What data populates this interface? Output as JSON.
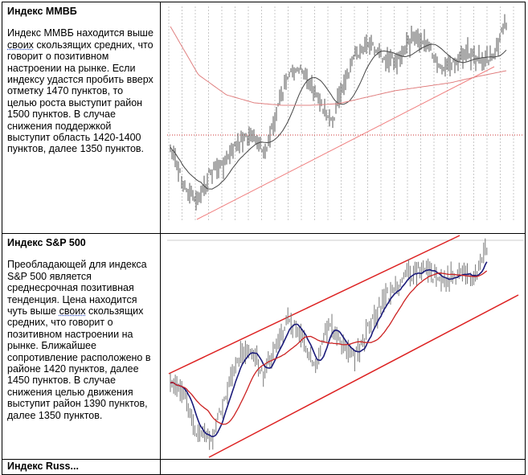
{
  "rows": [
    {
      "title": "Индекс ММВБ",
      "body_parts": [
        "Индекс ММВБ находится выше ",
        "своих",
        " скользящих средних, что говорит о позитивном настроении на рынке. Если индексу удастся пробить вверх отметку 1470 пунктов, то целью роста выступит район 1500 пунктов. В случае снижения поддержкой выступит область 1420-1400  пунктов, далее 1350 пунктов."
      ],
      "chart": {
        "price_color": "#555555",
        "ma_fast_color": "#444444",
        "ma_slow_color": "#e08080",
        "trend_color": "#f08080",
        "level_color": "#cc3333"
      }
    },
    {
      "title": "Индекс S&P 500",
      "body_parts": [
        "Преобладающей для индекса S&P 500 является среднесрочная позитивная тенденция. Цена находится чуть выше ",
        "своих",
        " скользящих средних, что говорит о позитивном настроении на рынке. Ближайшее сопротивление расположено в районе 1420 пунктов, далее 1450 пунктов. В случае снижения целью движения выступит район 1390 пунктов, далее 1350 пунктов."
      ],
      "chart": {
        "price_color": "#777777",
        "ma_fast_color": "#1a1a7a",
        "ma_slow_color": "#cc2222",
        "channel_color": "#dd2222"
      }
    },
    {
      "title": "Индекс Russ..."
    }
  ]
}
